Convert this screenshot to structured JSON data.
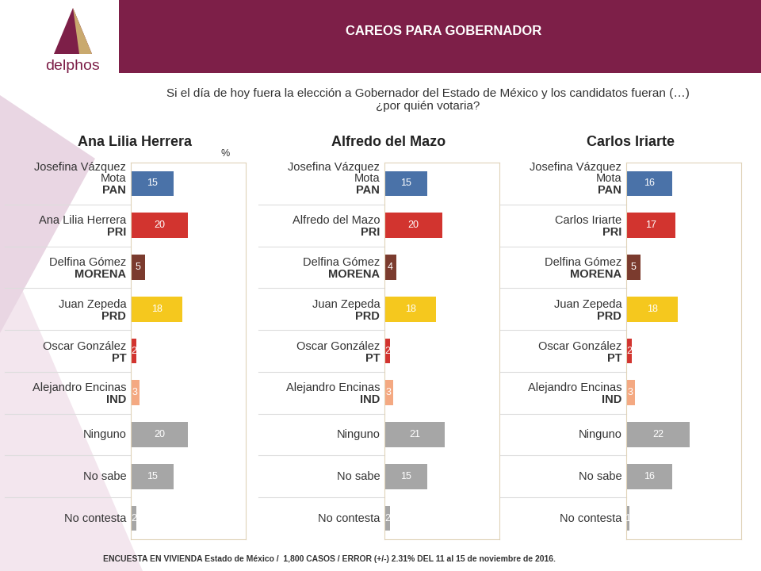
{
  "title": "CAREOS PARA GOBERNADOR",
  "logo": "delphos",
  "subtitle": "Si el día de hoy fuera la elección a Gobernador del Estado de México y los candidatos fueran (…)\n¿por quién votaria?",
  "note": "ENCUESTA EN VIVIENDA Estado de México /  1,800 CASOS / ERROR (+/-) 2.31% DEL 11 al 15 de noviembre de 2016.",
  "chart_data": [
    {
      "type": "bar",
      "orientation": "horizontal",
      "title": "Ana Lilia Herrera",
      "unit": "%",
      "categories": [
        "Josefina Vázquez Mota",
        "Ana Lilia Herrera",
        "Delfina Gómez",
        "Juan Zepeda",
        "Oscar González",
        "Alejandro Encinas",
        "Ninguno",
        "No sabe",
        "No contesta"
      ],
      "parties": [
        "PAN",
        "PRI",
        "MORENA",
        "PRD",
        "PT",
        "IND",
        null,
        null,
        null
      ],
      "values": [
        15,
        20,
        5,
        18,
        2,
        3,
        20,
        15,
        2
      ],
      "colors": [
        "#4a72a8",
        "#d2342f",
        "#7b3b2e",
        "#f5c81e",
        "#d2342f",
        "#f4a982",
        "#a6a6a6",
        "#a6a6a6",
        "#a6a6a6"
      ],
      "xlim": [
        0,
        40
      ],
      "data_labels": true,
      "tick_labels": false
    },
    {
      "type": "bar",
      "orientation": "horizontal",
      "title": "Alfredo del Mazo",
      "categories": [
        "Josefina Vázquez Mota",
        "Alfredo del Mazo",
        "Delfina Gómez",
        "Juan Zepeda",
        "Oscar González",
        "Alejandro Encinas",
        "Ninguno",
        "No sabe",
        "No contesta"
      ],
      "parties": [
        "PAN",
        "PRI",
        "MORENA",
        "PRD",
        "PT",
        "IND",
        null,
        null,
        null
      ],
      "values": [
        15,
        20,
        4,
        18,
        2,
        3,
        21,
        15,
        2
      ],
      "colors": [
        "#4a72a8",
        "#d2342f",
        "#7b3b2e",
        "#f5c81e",
        "#d2342f",
        "#f4a982",
        "#a6a6a6",
        "#a6a6a6",
        "#a6a6a6"
      ],
      "xlim": [
        0,
        40
      ],
      "data_labels": true,
      "tick_labels": false
    },
    {
      "type": "bar",
      "orientation": "horizontal",
      "title": "Carlos Iriarte",
      "categories": [
        "Josefina Vázquez Mota",
        "Carlos Iriarte",
        "Delfina Gómez",
        "Juan Zepeda",
        "Oscar González",
        "Alejandro Encinas",
        "Ninguno",
        "No sabe",
        "No contesta"
      ],
      "parties": [
        "PAN",
        "PRI",
        "MORENA",
        "PRD",
        "PT",
        "IND",
        null,
        null,
        null
      ],
      "values": [
        16,
        17,
        5,
        18,
        2,
        3,
        22,
        16,
        1
      ],
      "colors": [
        "#4a72a8",
        "#d2342f",
        "#7b3b2e",
        "#f5c81e",
        "#d2342f",
        "#f4a982",
        "#a6a6a6",
        "#a6a6a6",
        "#a6a6a6"
      ],
      "xlim": [
        0,
        40
      ],
      "data_labels": true,
      "tick_labels": false
    }
  ]
}
